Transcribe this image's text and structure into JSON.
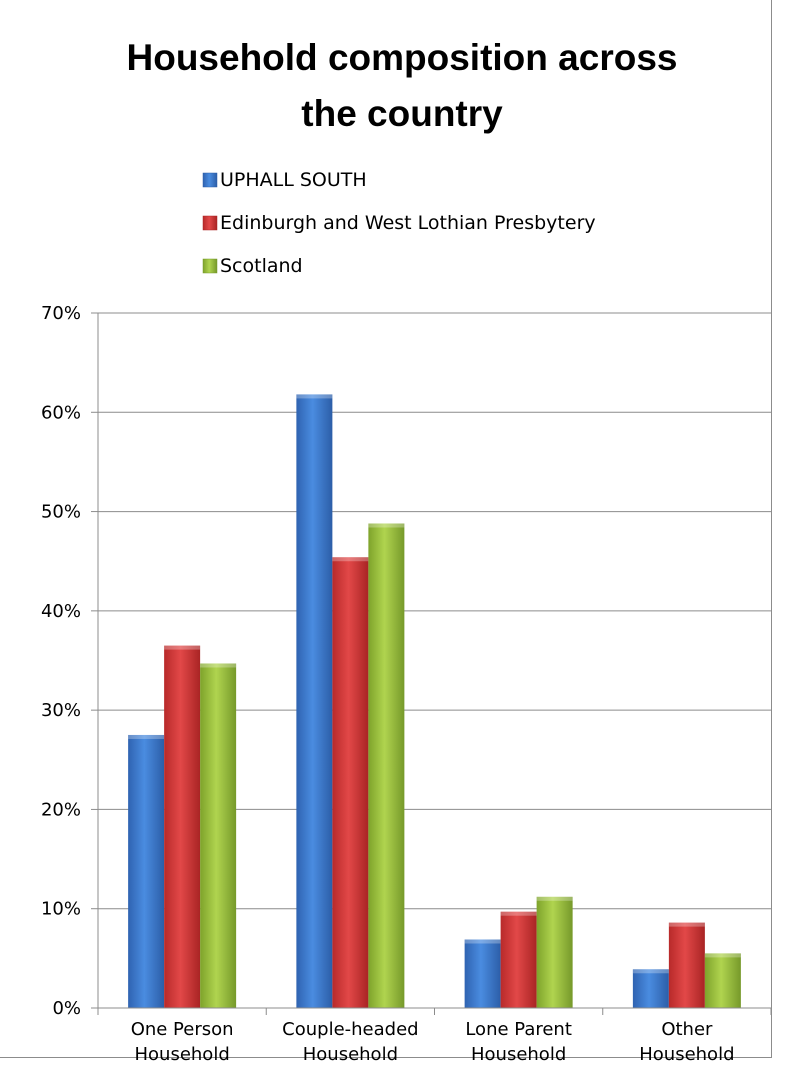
{
  "chart_data": {
    "type": "bar",
    "title_lines": [
      "Household composition across",
      "the country"
    ],
    "categories": [
      [
        "One Person",
        "Household"
      ],
      [
        "Couple-headed",
        "Household"
      ],
      [
        "Lone Parent",
        "Household"
      ],
      [
        "Other",
        "Household"
      ]
    ],
    "series": [
      {
        "name": "UPHALL SOUTH",
        "color": "#3f7ed2",
        "values": [
          27.5,
          61.8,
          6.9,
          3.9
        ]
      },
      {
        "name": "Edinburgh and West Lothian Presbytery",
        "color": "#d23a3a",
        "values": [
          36.5,
          45.4,
          9.7,
          8.6
        ]
      },
      {
        "name": "Scotland",
        "color": "#9bc23f",
        "values": [
          34.7,
          48.8,
          11.2,
          5.5
        ]
      }
    ],
    "ylim": [
      0,
      70
    ],
    "yticks": [
      "0%",
      "10%",
      "20%",
      "30%",
      "40%",
      "50%",
      "60%",
      "70%"
    ],
    "grid": true,
    "legend_position": "top-center"
  }
}
